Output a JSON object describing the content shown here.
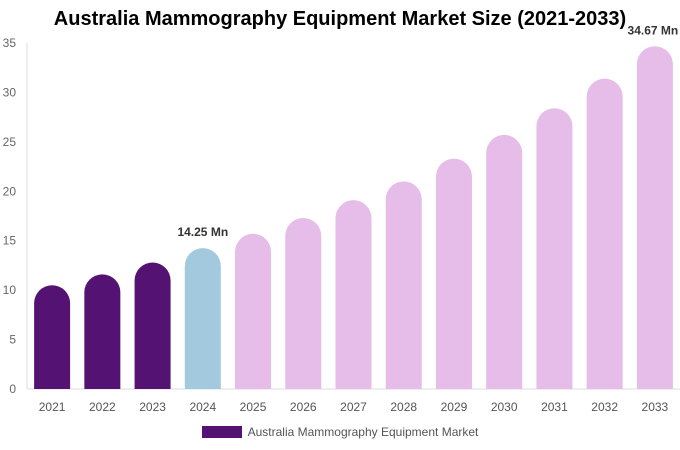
{
  "chart_data": {
    "type": "bar",
    "title": "Australia Mammography Equipment Market Size (2021-2033)",
    "categories": [
      "2021",
      "2022",
      "2023",
      "2024",
      "2025",
      "2026",
      "2027",
      "2028",
      "2029",
      "2030",
      "2031",
      "2032",
      "2033"
    ],
    "series": [
      {
        "name": "Australia Mammography Equipment Market",
        "values": [
          10.5,
          11.6,
          12.8,
          14.25,
          15.7,
          17.3,
          19.1,
          21.0,
          23.3,
          25.7,
          28.4,
          31.4,
          34.67
        ]
      }
    ],
    "data_labels": {
      "2024": "14.25 Mn",
      "2033": "34.67 Mn"
    },
    "ylim": [
      0,
      35
    ],
    "yticks": [
      0,
      5,
      10,
      15,
      20,
      25,
      30,
      35
    ],
    "grid": false,
    "legend": "bottom",
    "colors": {
      "historical": "#541372",
      "base_year": "#a3c9de",
      "forecast": "#e6bde9"
    }
  }
}
